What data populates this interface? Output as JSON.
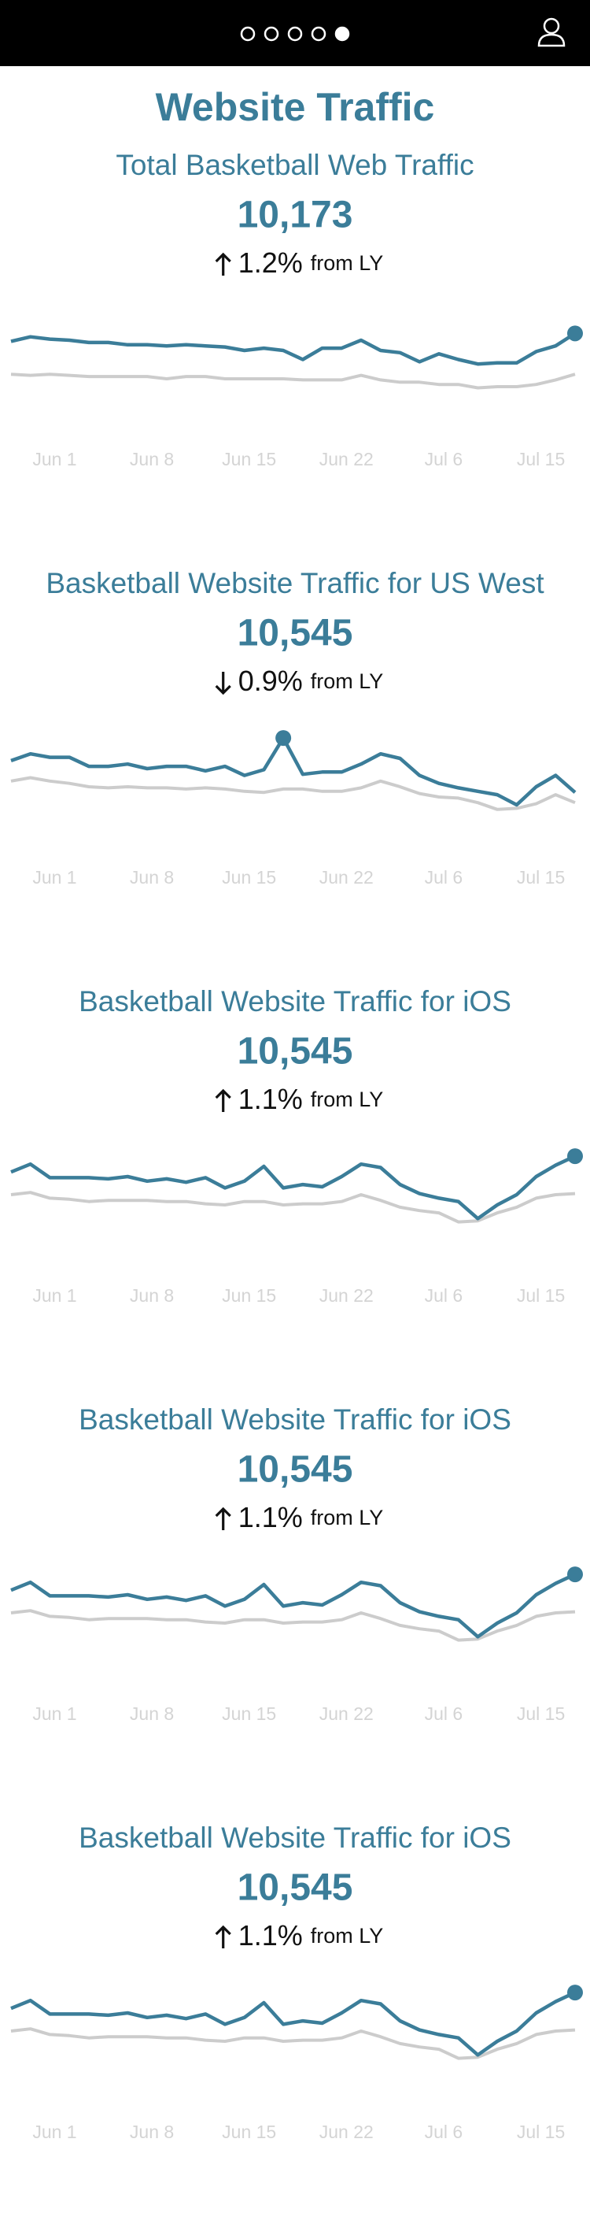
{
  "title": "Website Traffic",
  "cards": [
    {
      "title": "Total Basketball Web Traffic",
      "value": "10,173",
      "change": "1.2%",
      "direction": "up",
      "suffix": "from LY",
      "chart_data": {
        "type": "line",
        "categories": [
          null,
          null,
          "Jun 1",
          null,
          null,
          null,
          null,
          "Jun 8",
          null,
          null,
          null,
          null,
          "Jun 15",
          null,
          null,
          null,
          null,
          "Jun 22",
          null,
          null,
          null,
          null,
          "Jul 6",
          null,
          null,
          null,
          null,
          "Jul 15",
          null,
          null
        ],
        "ylim": [
          0,
          100
        ],
        "series": [
          {
            "color": "#3b7d99",
            "values": [
              49,
              53,
              51,
              50,
              48,
              48,
              46,
              46,
              45,
              46,
              45,
              44,
              41,
              43,
              41,
              33,
              43,
              43,
              50,
              41,
              39,
              31,
              38,
              33,
              29,
              30,
              30,
              40,
              45,
              56
            ]
          },
          {
            "color": "#cccccc",
            "values": [
              20,
              19,
              20,
              19,
              18,
              18,
              18,
              18,
              16,
              18,
              18,
              16,
              16,
              16,
              16,
              15,
              15,
              15,
              19,
              15,
              13,
              13,
              11,
              11,
              8,
              9,
              9,
              11,
              15,
              20
            ]
          }
        ]
      }
    },
    {
      "title": "Basketball Website Traffic for US West",
      "value": "10,545",
      "change": "0.9%",
      "direction": "down",
      "suffix": "from LY",
      "chart_data": {
        "type": "line",
        "categories": [
          null,
          null,
          "Jun 1",
          null,
          null,
          null,
          null,
          "Jun 8",
          null,
          null,
          null,
          null,
          "Jun 15",
          null,
          null,
          null,
          null,
          "Jun 22",
          null,
          null,
          null,
          null,
          "Jul 6",
          null,
          null,
          null,
          null,
          "Jul 15",
          null,
          null
        ],
        "ylim": [
          0,
          100
        ],
        "series": [
          {
            "color": "#3b7d99",
            "values": [
              48,
              54,
              51,
              51,
              43,
              43,
              45,
              41,
              43,
              43,
              39,
              43,
              35,
              40,
              68,
              36,
              38,
              38,
              45,
              54,
              50,
              35,
              28,
              24,
              21,
              18,
              9,
              25,
              35,
              20
            ]
          },
          {
            "color": "#cccccc",
            "values": [
              30,
              33,
              30,
              28,
              25,
              24,
              25,
              24,
              24,
              23,
              24,
              23,
              21,
              20,
              23,
              23,
              21,
              21,
              24,
              30,
              25,
              19,
              16,
              15,
              11,
              5,
              6,
              10,
              18,
              11
            ]
          }
        ]
      }
    },
    {
      "title": "Basketball Website Traffic for iOS",
      "value": "10,545",
      "change": "1.1%",
      "direction": "up",
      "suffix": "from LY",
      "chart_data": {
        "type": "line",
        "categories": [
          null,
          null,
          "Jun 1",
          null,
          null,
          null,
          null,
          "Jun 8",
          null,
          null,
          null,
          null,
          "Jun 15",
          null,
          null,
          null,
          null,
          "Jun 22",
          null,
          null,
          null,
          null,
          "Jul 6",
          null,
          null,
          null,
          null,
          "Jul 15",
          null,
          null
        ],
        "ylim": [
          0,
          100
        ],
        "series": [
          {
            "color": "#3b7d99",
            "values": [
              54,
              61,
              49,
              49,
              49,
              48,
              50,
              46,
              48,
              45,
              49,
              40,
              46,
              59,
              40,
              43,
              41,
              50,
              61,
              58,
              43,
              35,
              31,
              28,
              13,
              25,
              34,
              50,
              60,
              68
            ]
          },
          {
            "color": "#cccccc",
            "values": [
              34,
              36,
              31,
              30,
              28,
              29,
              29,
              29,
              28,
              28,
              26,
              25,
              28,
              28,
              25,
              26,
              26,
              28,
              34,
              29,
              23,
              20,
              18,
              10,
              11,
              18,
              23,
              31,
              34,
              35
            ]
          }
        ]
      }
    },
    {
      "title": "Basketball Website Traffic for iOS",
      "value": "10,545",
      "change": "1.1%",
      "direction": "up",
      "suffix": "from LY",
      "chart_data": {
        "type": "line",
        "categories": [
          null,
          null,
          "Jun 1",
          null,
          null,
          null,
          null,
          "Jun 8",
          null,
          null,
          null,
          null,
          "Jun 15",
          null,
          null,
          null,
          null,
          "Jun 22",
          null,
          null,
          null,
          null,
          "Jul 6",
          null,
          null,
          null,
          null,
          "Jul 15",
          null,
          null
        ],
        "ylim": [
          0,
          100
        ],
        "series": [
          {
            "color": "#3b7d99",
            "values": [
              54,
              61,
              49,
              49,
              49,
              48,
              50,
              46,
              48,
              45,
              49,
              40,
              46,
              59,
              40,
              43,
              41,
              50,
              61,
              58,
              43,
              35,
              31,
              28,
              13,
              25,
              34,
              50,
              60,
              68
            ]
          },
          {
            "color": "#cccccc",
            "values": [
              34,
              36,
              31,
              30,
              28,
              29,
              29,
              29,
              28,
              28,
              26,
              25,
              28,
              28,
              25,
              26,
              26,
              28,
              34,
              29,
              23,
              20,
              18,
              10,
              11,
              18,
              23,
              31,
              34,
              35
            ]
          }
        ]
      }
    },
    {
      "title": "Basketball Website Traffic for iOS",
      "value": "10,545",
      "change": "1.1%",
      "direction": "up",
      "suffix": "from LY",
      "chart_data": {
        "type": "line",
        "categories": [
          null,
          null,
          "Jun 1",
          null,
          null,
          null,
          null,
          "Jun 8",
          null,
          null,
          null,
          null,
          "Jun 15",
          null,
          null,
          null,
          null,
          "Jun 22",
          null,
          null,
          null,
          null,
          "Jul 6",
          null,
          null,
          null,
          null,
          "Jul 15",
          null,
          null
        ],
        "ylim": [
          0,
          100
        ],
        "series": [
          {
            "color": "#3b7d99",
            "values": [
              54,
              61,
              49,
              49,
              49,
              48,
              50,
              46,
              48,
              45,
              49,
              40,
              46,
              59,
              40,
              43,
              41,
              50,
              61,
              58,
              43,
              35,
              31,
              28,
              13,
              25,
              34,
              50,
              60,
              68
            ]
          },
          {
            "color": "#cccccc",
            "values": [
              34,
              36,
              31,
              30,
              28,
              29,
              29,
              29,
              28,
              28,
              26,
              25,
              28,
              28,
              25,
              26,
              26,
              28,
              34,
              29,
              23,
              20,
              18,
              10,
              11,
              18,
              23,
              31,
              34,
              35
            ]
          }
        ]
      }
    }
  ]
}
